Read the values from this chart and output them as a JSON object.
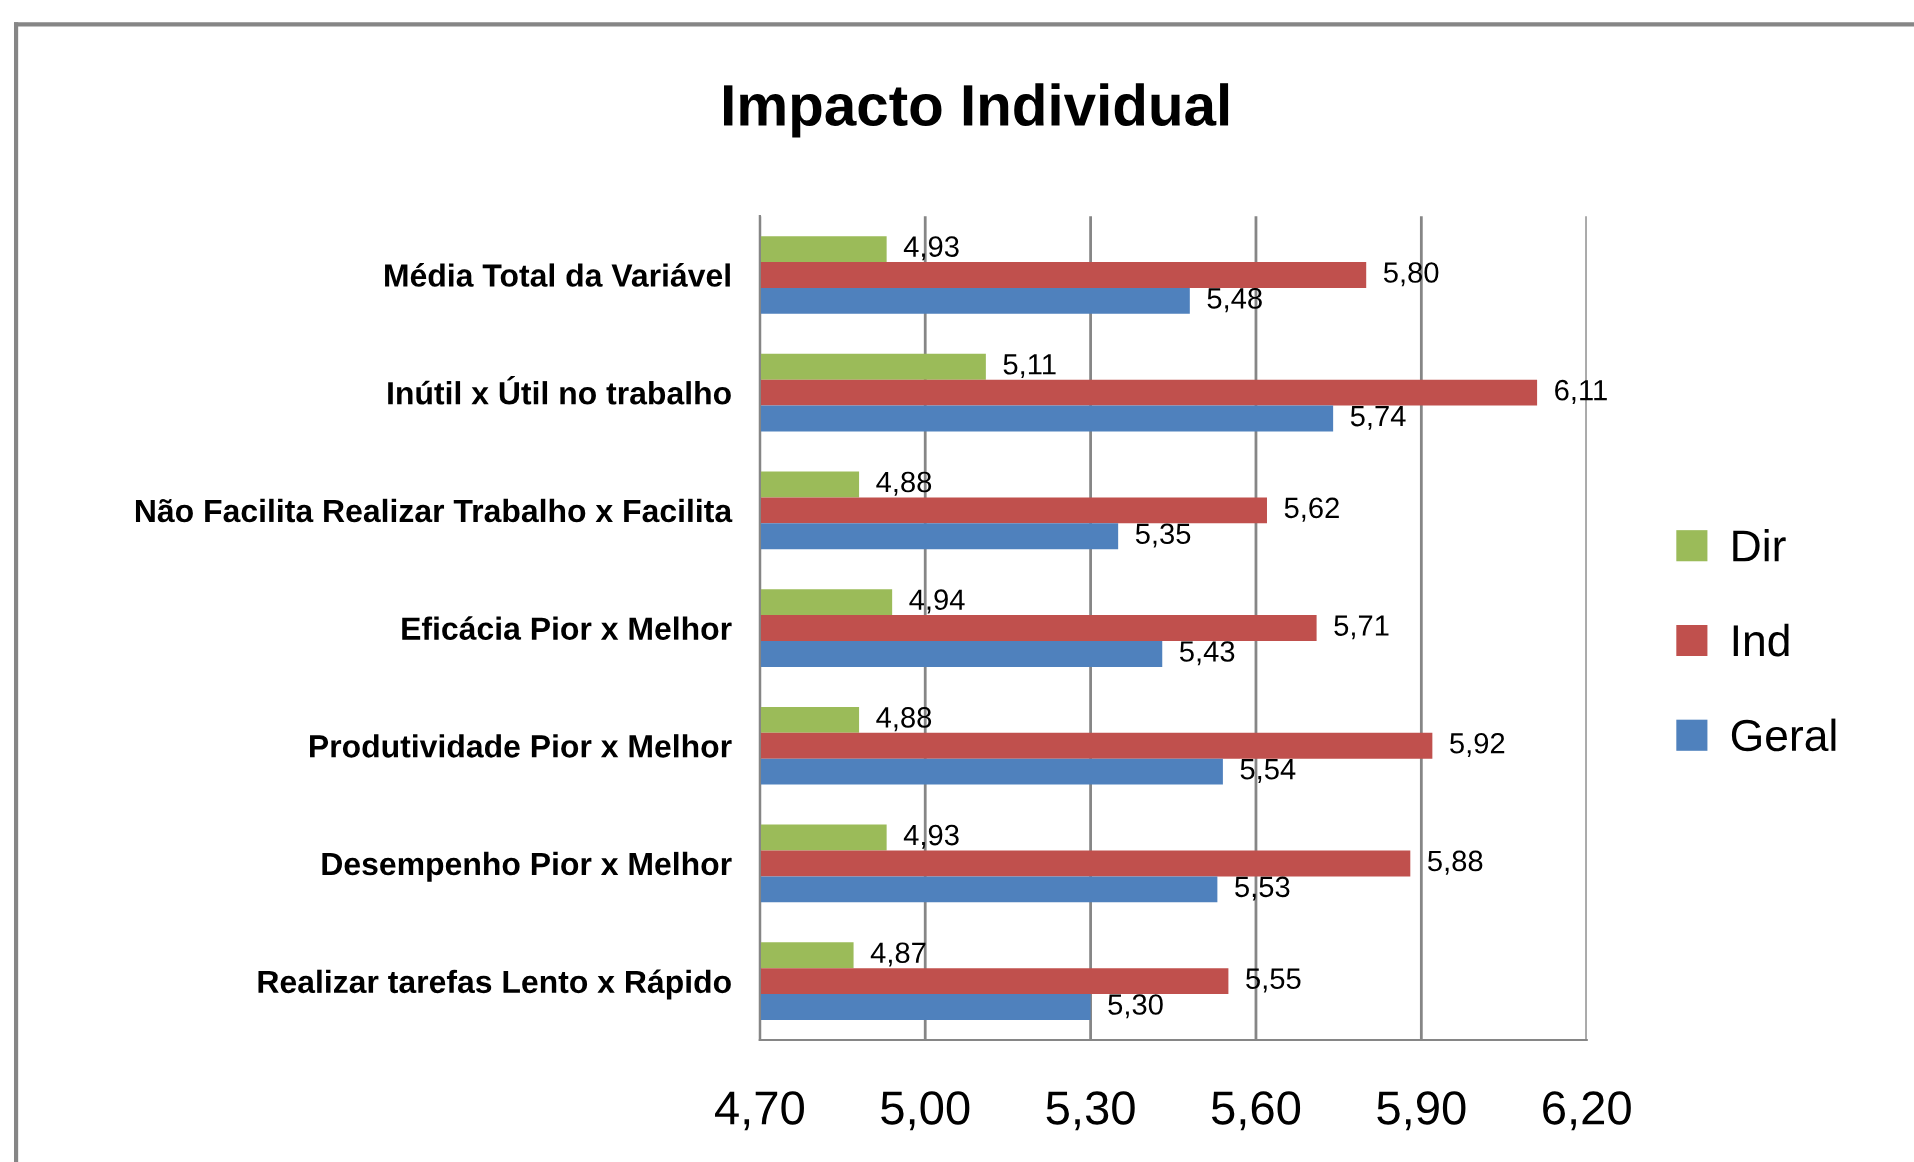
{
  "chart_data": {
    "type": "bar",
    "orientation": "horizontal",
    "title": "Impacto Individual",
    "categories": [
      "Média Total da Variável",
      "Inútil x Útil no trabalho",
      "Não Facilita Realizar Trabalho x Facilita",
      "Eficácia Pior x Melhor",
      "Produtividade Pior x Melhor",
      "Desempenho Pior x Melhor",
      "Realizar tarefas Lento x Rápido"
    ],
    "series": [
      {
        "name": "Dir",
        "color": "#9bbb59",
        "values": [
          4.93,
          5.11,
          4.88,
          4.94,
          4.88,
          4.93,
          4.87
        ],
        "value_labels": [
          "4,93",
          "5,11",
          "4,88",
          "4,94",
          "4,88",
          "4,93",
          "4,87"
        ]
      },
      {
        "name": "Ind",
        "color": "#c0504d",
        "values": [
          5.8,
          6.11,
          5.62,
          5.71,
          5.92,
          5.88,
          5.55
        ],
        "value_labels": [
          "5,80",
          "6,11",
          "5,62",
          "5,71",
          "5,92",
          "5,88",
          "5,55"
        ]
      },
      {
        "name": "Geral",
        "color": "#4f81bd",
        "values": [
          5.48,
          5.74,
          5.35,
          5.43,
          5.54,
          5.53,
          5.3
        ],
        "value_labels": [
          "5,48",
          "5,74",
          "5,35",
          "5,43",
          "5,54",
          "5,53",
          "5,30"
        ]
      }
    ],
    "xlim": [
      4.7,
      6.2
    ],
    "xticks": [
      {
        "value": 4.7,
        "label": "4,70"
      },
      {
        "value": 5.0,
        "label": "5,00"
      },
      {
        "value": 5.3,
        "label": "5,30"
      },
      {
        "value": 5.6,
        "label": "5,60"
      },
      {
        "value": 5.9,
        "label": "5,90"
      },
      {
        "value": 6.2,
        "label": "6,20"
      }
    ],
    "grid": "x",
    "legend": "right"
  }
}
